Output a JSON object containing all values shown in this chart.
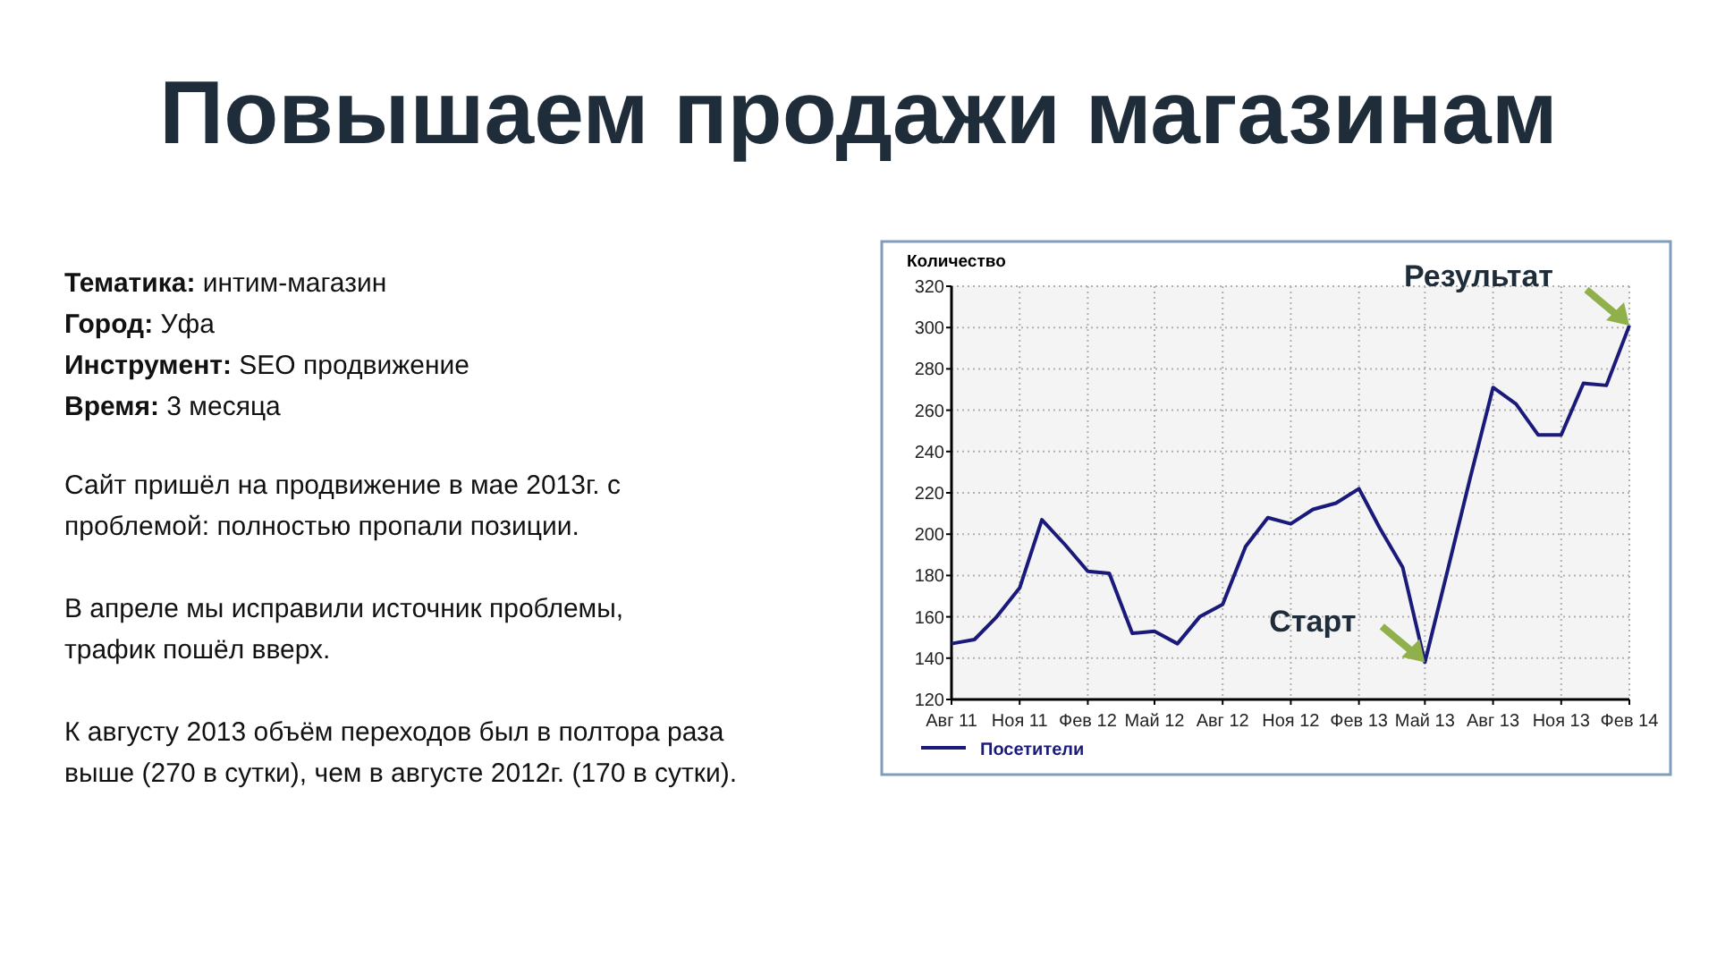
{
  "chart_data": {
    "type": "line",
    "title": "Повышаем продажи магазинам",
    "ylabel": "Количество",
    "x": [
      "2011-08",
      "2011-09",
      "2011-10",
      "2011-11",
      "2011-12",
      "2012-01",
      "2012-02",
      "2012-03",
      "2012-04",
      "2012-05",
      "2012-06",
      "2012-07",
      "2012-08",
      "2012-09",
      "2012-10",
      "2012-11",
      "2012-12",
      "2013-01",
      "2013-02",
      "2013-03",
      "2013-04",
      "2013-05",
      "2013-06",
      "2013-07",
      "2013-08",
      "2013-09",
      "2013-10",
      "2013-11",
      "2013-12",
      "2014-01",
      "2014-02"
    ],
    "series": [
      {
        "name": "Посетители",
        "color": "#1a1a7a",
        "values": [
          147,
          149,
          160,
          174,
          207,
          195,
          182,
          181,
          152,
          153,
          147,
          160,
          166,
          194,
          208,
          205,
          212,
          215,
          222,
          203,
          184,
          138,
          183,
          227,
          271,
          263,
          248,
          248,
          273,
          272,
          301
        ]
      }
    ],
    "xlim": [
      "2011-08",
      "2014-02"
    ],
    "xticks": [
      {
        "value": "2011-08",
        "label": "Авг 11"
      },
      {
        "value": "2011-11",
        "label": "Ноя 11"
      },
      {
        "value": "2012-02",
        "label": "Фев 12"
      },
      {
        "value": "2012-05",
        "label": "Май 12"
      },
      {
        "value": "2012-08",
        "label": "Авг 12"
      },
      {
        "value": "2012-11",
        "label": "Ноя 12"
      },
      {
        "value": "2013-02",
        "label": "Фев 13"
      },
      {
        "value": "2013-05",
        "label": "Май 13"
      },
      {
        "value": "2013-08",
        "label": "Авг 13"
      },
      {
        "value": "2013-11",
        "label": "Ноя 13"
      },
      {
        "value": "2014-02",
        "label": "Фев 14"
      }
    ],
    "ylim": [
      120,
      320
    ],
    "yticks": [
      120,
      140,
      160,
      180,
      200,
      220,
      240,
      260,
      280,
      300,
      320
    ],
    "grid": true,
    "legend": "bottom left",
    "marker": "none",
    "line_style": "solid",
    "annotations": [
      {
        "text": "Старт",
        "x": "2013-05",
        "y": 138
      },
      {
        "text": "Результат",
        "x": "2014-02",
        "y": 301
      },
      "Тематика: интим-магазин",
      "Город: Уфа",
      "Инструмент: SEO продвижение",
      "Время: 3 месяца",
      "Сайт пришёл на продвижение в мае 2013г. с",
      "проблемой: полностью пропали позиции.",
      "В апреле мы исправили источник проблемы,",
      "трафик пошёл вверх.",
      "К августу 2013 объём переходов был в полтора раза",
      "выше (270 в сутки), чем в августе 2012г. (170 в сутки)."
    ]
  }
}
